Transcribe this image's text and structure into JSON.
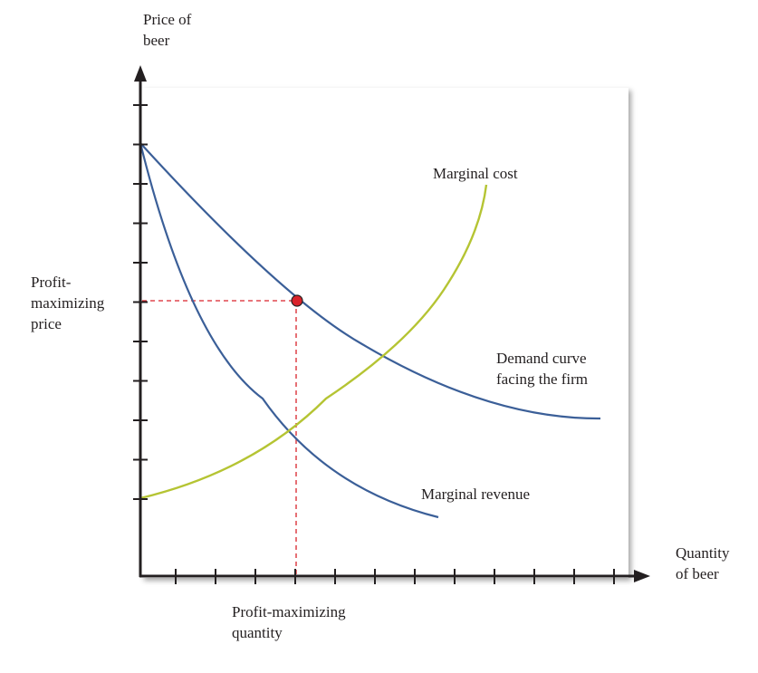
{
  "axes": {
    "y_label": "Price of\nbeer",
    "x_label": "Quantity\nof beer"
  },
  "annotations": {
    "price_label": "Profit-\nmaximizing\nprice",
    "quantity_label": "Profit-maximizing\nquantity"
  },
  "curves": {
    "marginal_cost": "Marginal cost",
    "demand": "Demand curve\nfacing the firm",
    "marginal_revenue": "Marginal revenue"
  },
  "colors": {
    "demand": "#3b5f98",
    "marginal_revenue": "#3b5f98",
    "marginal_cost": "#b5c433",
    "guide": "#d9232b",
    "point": "#d9232b",
    "axis": "#231f20"
  },
  "ticks": {
    "x_count": 12,
    "y_count": 11
  }
}
